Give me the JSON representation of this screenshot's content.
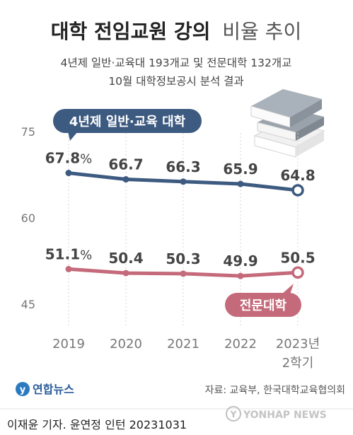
{
  "title_bold": "대학 전임교원 강의",
  "title_light": "비율 추이",
  "subtitle_line1": "4년제 일반·교육대 193개교 및 전문대학 132개교",
  "subtitle_line2": "10월 대학정보공시 분석 결과",
  "source": "자료: 교육부, 한국대학교육협의회",
  "logo_text": "연합뉴스",
  "watermark": "YONHAP NEWS",
  "credit": "이재윤 기자. 윤연정 인턴  20231031",
  "colors": {
    "series_general": "#3d5a80",
    "series_college": "#c46a7a",
    "axis_text": "#777777",
    "value_text": "#444444",
    "grid": "#d6d6d6"
  },
  "icons": [
    "book-stack-icon",
    "yonhap-logo-icon"
  ],
  "chart_data": {
    "type": "line",
    "x": [
      "2019",
      "2020",
      "2021",
      "2022",
      "2023년\n2학기"
    ],
    "y_ticks": [
      75,
      60,
      45
    ],
    "ylim": [
      45,
      75
    ],
    "grid": true,
    "series": [
      {
        "name": "4년제 일반·교육 대학",
        "values": [
          67.8,
          66.7,
          66.3,
          65.9,
          64.8
        ],
        "labels": [
          "67.8%",
          "66.7",
          "66.3",
          "65.9",
          "64.8"
        ]
      },
      {
        "name": "전문대학",
        "values": [
          51.1,
          50.4,
          50.3,
          49.9,
          50.5
        ],
        "labels": [
          "51.1%",
          "50.4",
          "50.3",
          "49.9",
          "50.5"
        ]
      }
    ]
  }
}
